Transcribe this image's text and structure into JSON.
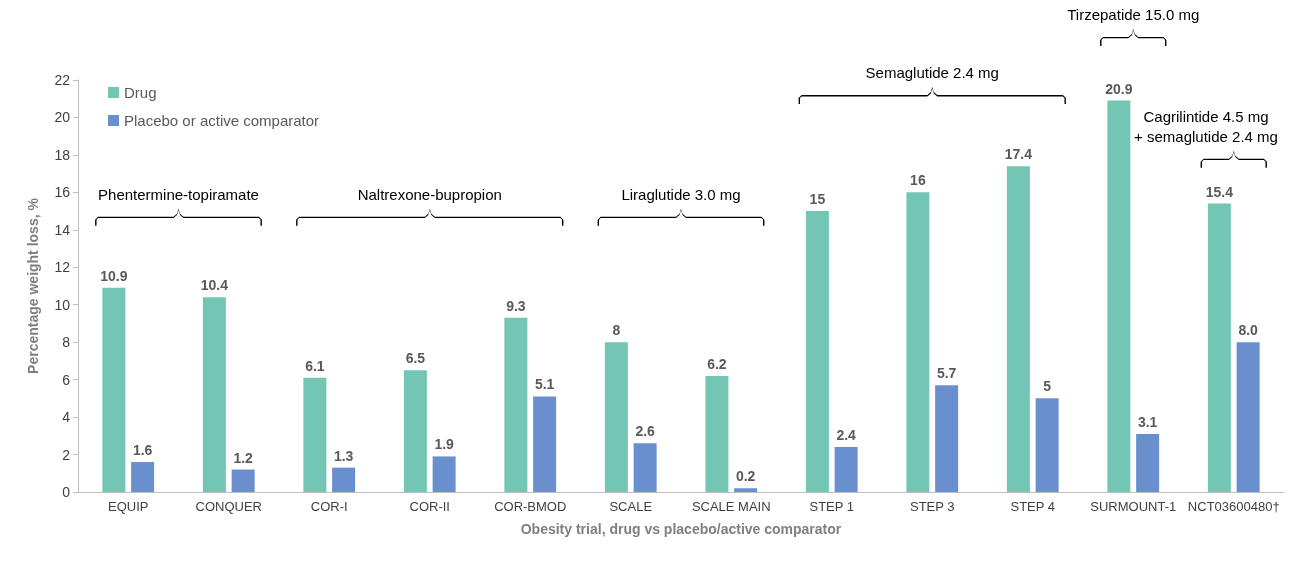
{
  "chart_data": {
    "type": "bar",
    "xlabel": "Obesity trial, drug vs placebo/active comparator",
    "ylabel": "Percentage weight loss, %",
    "categories": [
      "EQUIP",
      "CONQUER",
      "COR-I",
      "COR-II",
      "COR-BMOD",
      "SCALE",
      "SCALE MAIN",
      "STEP 1",
      "STEP 3",
      "STEP 4",
      "SURMOUNT-1",
      "NCT03600480†"
    ],
    "series": [
      {
        "name": "Drug",
        "color": "#72c6b3",
        "values": [
          10.9,
          10.4,
          6.1,
          6.5,
          9.3,
          8,
          6.2,
          15,
          16,
          17.4,
          20.9,
          15.4
        ],
        "value_labels": [
          "10.9",
          "10.4",
          "6.1",
          "6.5",
          "9.3",
          "8",
          "6.2",
          "15",
          "16",
          "17.4",
          "20.9",
          "15.4"
        ]
      },
      {
        "name": "Placebo or active comparator",
        "color": "#6a8fcf",
        "values": [
          1.6,
          1.2,
          1.3,
          1.9,
          5.1,
          2.6,
          0.2,
          2.4,
          5.7,
          5,
          3.1,
          8.0
        ],
        "value_labels": [
          "1.6",
          "1.2",
          "1.3",
          "1.9",
          "5.1",
          "2.6",
          "0.2",
          "2.4",
          "5.7",
          "5",
          "3.1",
          "8.0"
        ]
      }
    ],
    "ylim": [
      0,
      22
    ],
    "yticks": [
      0,
      2,
      4,
      6,
      8,
      10,
      12,
      14,
      16,
      18,
      20,
      22
    ],
    "grid": false,
    "legend": "top left",
    "annotations": [
      "Phentermine-topiramate",
      "Naltrexone-bupropion",
      "Liraglutide 3.0 mg",
      "Semaglutide 2.4 mg",
      "Tirzepatide 15.0 mg",
      "Cagrilintide 4.5 mg\n+ semaglutide 2.4 mg"
    ]
  }
}
